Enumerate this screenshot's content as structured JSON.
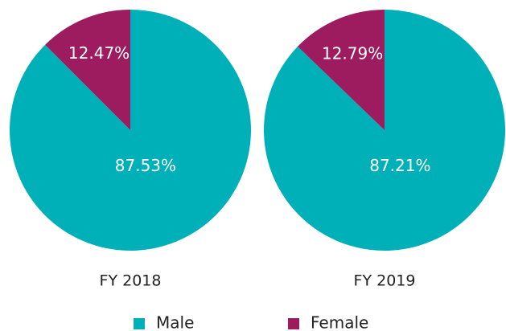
{
  "chart_data": [
    {
      "type": "pie",
      "title": "FY 2018",
      "categories": [
        "Male",
        "Female"
      ],
      "values": [
        87.53,
        12.47
      ],
      "value_labels": [
        "87.53%",
        "12.47%"
      ],
      "colors": [
        "#00b0b9",
        "#9c1c5f"
      ]
    },
    {
      "type": "pie",
      "title": "FY 2019",
      "categories": [
        "Male",
        "Female"
      ],
      "values": [
        87.21,
        12.79
      ],
      "value_labels": [
        "87.21%",
        "12.79%"
      ],
      "colors": [
        "#00b0b9",
        "#9c1c5f"
      ]
    }
  ]
}
